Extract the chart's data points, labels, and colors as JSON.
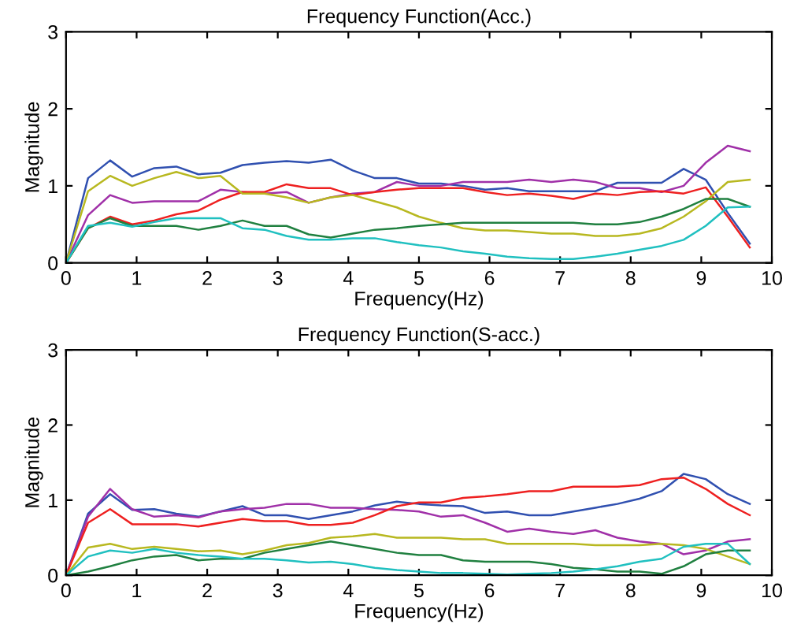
{
  "chart_data": [
    {
      "type": "line",
      "title": "Frequency Function(Acc.)",
      "xlabel": "Frequency(Hz)",
      "ylabel": "Magnitude",
      "x": [
        0,
        0.3125,
        0.625,
        0.9375,
        1.25,
        1.5625,
        1.875,
        2.1875,
        2.5,
        2.8125,
        3.125,
        3.4375,
        3.75,
        4.0625,
        4.375,
        4.6875,
        5,
        5.3125,
        5.625,
        5.9375,
        6.25,
        6.5625,
        6.875,
        7.1875,
        7.5,
        7.8125,
        8.125,
        8.4375,
        8.75,
        9.0625,
        9.375,
        9.6875
      ],
      "xlim": [
        0,
        10
      ],
      "xticks": [
        0,
        1,
        2,
        3,
        4,
        5,
        6,
        7,
        8,
        9,
        10
      ],
      "ylim": [
        0,
        3
      ],
      "yticks": [
        0,
        1,
        2,
        3
      ],
      "grid": false,
      "series": [
        {
          "color": "#3050b0",
          "values": [
            0,
            1.1,
            1.33,
            1.12,
            1.23,
            1.25,
            1.15,
            1.17,
            1.27,
            1.3,
            1.32,
            1.3,
            1.34,
            1.2,
            1.1,
            1.1,
            1.03,
            1.03,
            1.0,
            0.95,
            0.97,
            0.93,
            0.93,
            0.93,
            0.93,
            1.04,
            1.04,
            1.04,
            1.22,
            1.08,
            0.65,
            0.25
          ]
        },
        {
          "color": "#a030a8",
          "values": [
            0,
            0.62,
            0.88,
            0.78,
            0.8,
            0.8,
            0.8,
            0.95,
            0.92,
            0.9,
            0.92,
            0.78,
            0.85,
            0.9,
            0.92,
            1.05,
            1.0,
            1.0,
            1.05,
            1.05,
            1.05,
            1.08,
            1.05,
            1.08,
            1.05,
            0.97,
            0.97,
            0.92,
            1.0,
            1.3,
            1.52,
            1.45
          ]
        },
        {
          "color": "#ee2020",
          "values": [
            0,
            0.45,
            0.6,
            0.5,
            0.55,
            0.63,
            0.68,
            0.82,
            0.92,
            0.92,
            1.02,
            0.97,
            0.97,
            0.88,
            0.92,
            0.95,
            0.97,
            0.97,
            0.97,
            0.92,
            0.88,
            0.9,
            0.87,
            0.83,
            0.9,
            0.88,
            0.92,
            0.93,
            0.9,
            0.98,
            0.6,
            0.2
          ]
        },
        {
          "color": "#b8b820",
          "values": [
            0,
            0.93,
            1.13,
            1.0,
            1.1,
            1.18,
            1.1,
            1.13,
            0.9,
            0.9,
            0.85,
            0.78,
            0.85,
            0.88,
            0.8,
            0.72,
            0.6,
            0.52,
            0.45,
            0.42,
            0.42,
            0.4,
            0.38,
            0.38,
            0.35,
            0.35,
            0.38,
            0.45,
            0.6,
            0.8,
            1.05,
            1.08
          ]
        },
        {
          "color": "#208040",
          "values": [
            0,
            0.45,
            0.58,
            0.48,
            0.48,
            0.48,
            0.43,
            0.48,
            0.55,
            0.48,
            0.48,
            0.37,
            0.33,
            0.38,
            0.43,
            0.45,
            0.48,
            0.5,
            0.52,
            0.52,
            0.52,
            0.52,
            0.52,
            0.52,
            0.5,
            0.5,
            0.53,
            0.6,
            0.7,
            0.83,
            0.83,
            0.73
          ]
        },
        {
          "color": "#20c0c0",
          "values": [
            0,
            0.48,
            0.52,
            0.47,
            0.53,
            0.58,
            0.58,
            0.58,
            0.45,
            0.43,
            0.35,
            0.3,
            0.3,
            0.32,
            0.32,
            0.27,
            0.23,
            0.2,
            0.15,
            0.12,
            0.08,
            0.06,
            0.05,
            0.05,
            0.08,
            0.12,
            0.17,
            0.22,
            0.3,
            0.48,
            0.72,
            0.73
          ]
        }
      ]
    },
    {
      "type": "line",
      "title": "Frequency Function(S-acc.)",
      "xlabel": "Frequency(Hz)",
      "ylabel": "Magnitude",
      "x": [
        0,
        0.3125,
        0.625,
        0.9375,
        1.25,
        1.5625,
        1.875,
        2.1875,
        2.5,
        2.8125,
        3.125,
        3.4375,
        3.75,
        4.0625,
        4.375,
        4.6875,
        5,
        5.3125,
        5.625,
        5.9375,
        6.25,
        6.5625,
        6.875,
        7.1875,
        7.5,
        7.8125,
        8.125,
        8.4375,
        8.75,
        9.0625,
        9.375,
        9.6875
      ],
      "xlim": [
        0,
        10
      ],
      "xticks": [
        0,
        1,
        2,
        3,
        4,
        5,
        6,
        7,
        8,
        9,
        10
      ],
      "ylim": [
        0,
        3
      ],
      "yticks": [
        0,
        1,
        2,
        3
      ],
      "grid": false,
      "series": [
        {
          "color": "#3050b0",
          "values": [
            0,
            0.82,
            1.08,
            0.87,
            0.88,
            0.82,
            0.78,
            0.85,
            0.92,
            0.8,
            0.8,
            0.75,
            0.8,
            0.85,
            0.93,
            0.98,
            0.95,
            0.93,
            0.92,
            0.83,
            0.85,
            0.8,
            0.8,
            0.85,
            0.9,
            0.95,
            1.02,
            1.12,
            1.35,
            1.28,
            1.08,
            0.95
          ]
        },
        {
          "color": "#a030a8",
          "values": [
            0,
            0.78,
            1.15,
            0.88,
            0.78,
            0.8,
            0.77,
            0.85,
            0.88,
            0.9,
            0.95,
            0.95,
            0.9,
            0.9,
            0.88,
            0.87,
            0.85,
            0.78,
            0.8,
            0.7,
            0.58,
            0.62,
            0.58,
            0.55,
            0.6,
            0.5,
            0.45,
            0.42,
            0.28,
            0.33,
            0.45,
            0.48
          ]
        },
        {
          "color": "#ee2020",
          "values": [
            0,
            0.7,
            0.88,
            0.68,
            0.68,
            0.68,
            0.65,
            0.7,
            0.75,
            0.72,
            0.72,
            0.67,
            0.67,
            0.7,
            0.8,
            0.92,
            0.97,
            0.97,
            1.03,
            1.05,
            1.08,
            1.12,
            1.12,
            1.18,
            1.18,
            1.18,
            1.2,
            1.28,
            1.3,
            1.15,
            0.95,
            0.8
          ]
        },
        {
          "color": "#b8b820",
          "values": [
            0,
            0.37,
            0.42,
            0.35,
            0.38,
            0.35,
            0.32,
            0.33,
            0.28,
            0.33,
            0.4,
            0.43,
            0.5,
            0.52,
            0.55,
            0.5,
            0.5,
            0.5,
            0.48,
            0.48,
            0.42,
            0.42,
            0.42,
            0.42,
            0.4,
            0.4,
            0.4,
            0.42,
            0.4,
            0.35,
            0.25,
            0.15
          ]
        },
        {
          "color": "#208040",
          "values": [
            0,
            0.05,
            0.12,
            0.2,
            0.25,
            0.27,
            0.2,
            0.22,
            0.22,
            0.3,
            0.35,
            0.4,
            0.45,
            0.4,
            0.35,
            0.3,
            0.27,
            0.27,
            0.2,
            0.18,
            0.18,
            0.18,
            0.15,
            0.1,
            0.08,
            0.05,
            0.05,
            0.02,
            0.12,
            0.28,
            0.33,
            0.33
          ]
        },
        {
          "color": "#20c0c0",
          "values": [
            0,
            0.25,
            0.33,
            0.3,
            0.35,
            0.3,
            0.27,
            0.25,
            0.22,
            0.22,
            0.2,
            0.17,
            0.18,
            0.15,
            0.1,
            0.07,
            0.05,
            0.03,
            0.03,
            0.02,
            0.01,
            0.02,
            0.03,
            0.05,
            0.08,
            0.12,
            0.18,
            0.22,
            0.38,
            0.42,
            0.42,
            0.15
          ]
        }
      ]
    }
  ]
}
